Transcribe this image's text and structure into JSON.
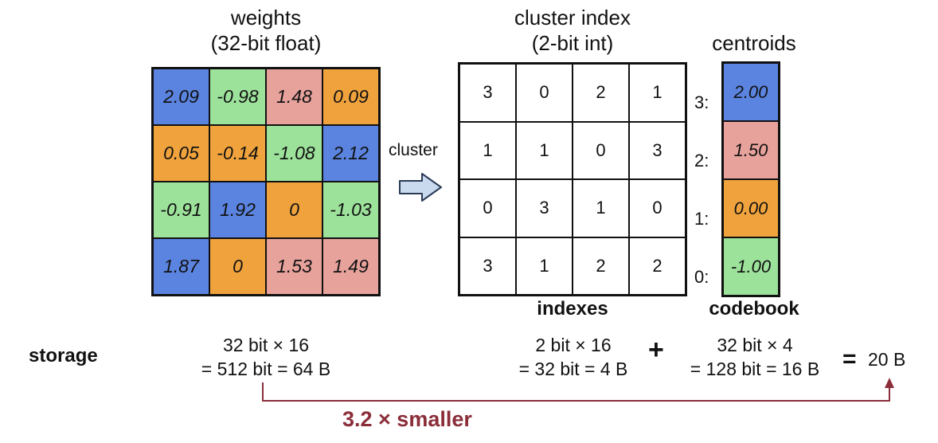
{
  "colors": {
    "blue": "#5b84e0",
    "green": "#9de29b",
    "pink": "#e7a29c",
    "orange": "#f0a33d",
    "arrow_fill": "#c9d9ee",
    "accent": "#8b2e3a"
  },
  "weights": {
    "title_line1": "weights",
    "title_line2": "(32-bit float)",
    "cells": [
      {
        "v": "2.09",
        "c": "blue"
      },
      {
        "v": "-0.98",
        "c": "green"
      },
      {
        "v": "1.48",
        "c": "pink"
      },
      {
        "v": "0.09",
        "c": "orange"
      },
      {
        "v": "0.05",
        "c": "orange"
      },
      {
        "v": "-0.14",
        "c": "orange"
      },
      {
        "v": "-1.08",
        "c": "green"
      },
      {
        "v": "2.12",
        "c": "blue"
      },
      {
        "v": "-0.91",
        "c": "green"
      },
      {
        "v": "1.92",
        "c": "blue"
      },
      {
        "v": "0",
        "c": "orange"
      },
      {
        "v": "-1.03",
        "c": "green"
      },
      {
        "v": "1.87",
        "c": "blue"
      },
      {
        "v": "0",
        "c": "orange"
      },
      {
        "v": "1.53",
        "c": "pink"
      },
      {
        "v": "1.49",
        "c": "pink"
      }
    ]
  },
  "cluster_label": "cluster",
  "index": {
    "title_line1": "cluster index",
    "title_line2": "(2-bit int)",
    "cells": [
      "3",
      "0",
      "2",
      "1",
      "1",
      "1",
      "0",
      "3",
      "0",
      "3",
      "1",
      "0",
      "3",
      "1",
      "2",
      "2"
    ],
    "caption": "indexes"
  },
  "centroids": {
    "title": "centroids",
    "caption": "codebook",
    "items": [
      {
        "label": "3:",
        "v": "2.00",
        "c": "blue"
      },
      {
        "label": "2:",
        "v": "1.50",
        "c": "pink"
      },
      {
        "label": "1:",
        "v": "0.00",
        "c": "orange"
      },
      {
        "label": "0:",
        "v": "-1.00",
        "c": "green"
      }
    ]
  },
  "storage": {
    "label": "storage",
    "weights_line1": "32 bit × 16",
    "weights_line2": "= 512 bit = 64 B",
    "index_line1": "2 bit × 16",
    "index_line2": "= 32 bit = 4 B",
    "plus": "+",
    "codebook_line1": "32 bit × 4",
    "codebook_line2": "= 128 bit = 16 B",
    "equals": "=",
    "total": "20 B"
  },
  "comparison": "3.2 × smaller"
}
